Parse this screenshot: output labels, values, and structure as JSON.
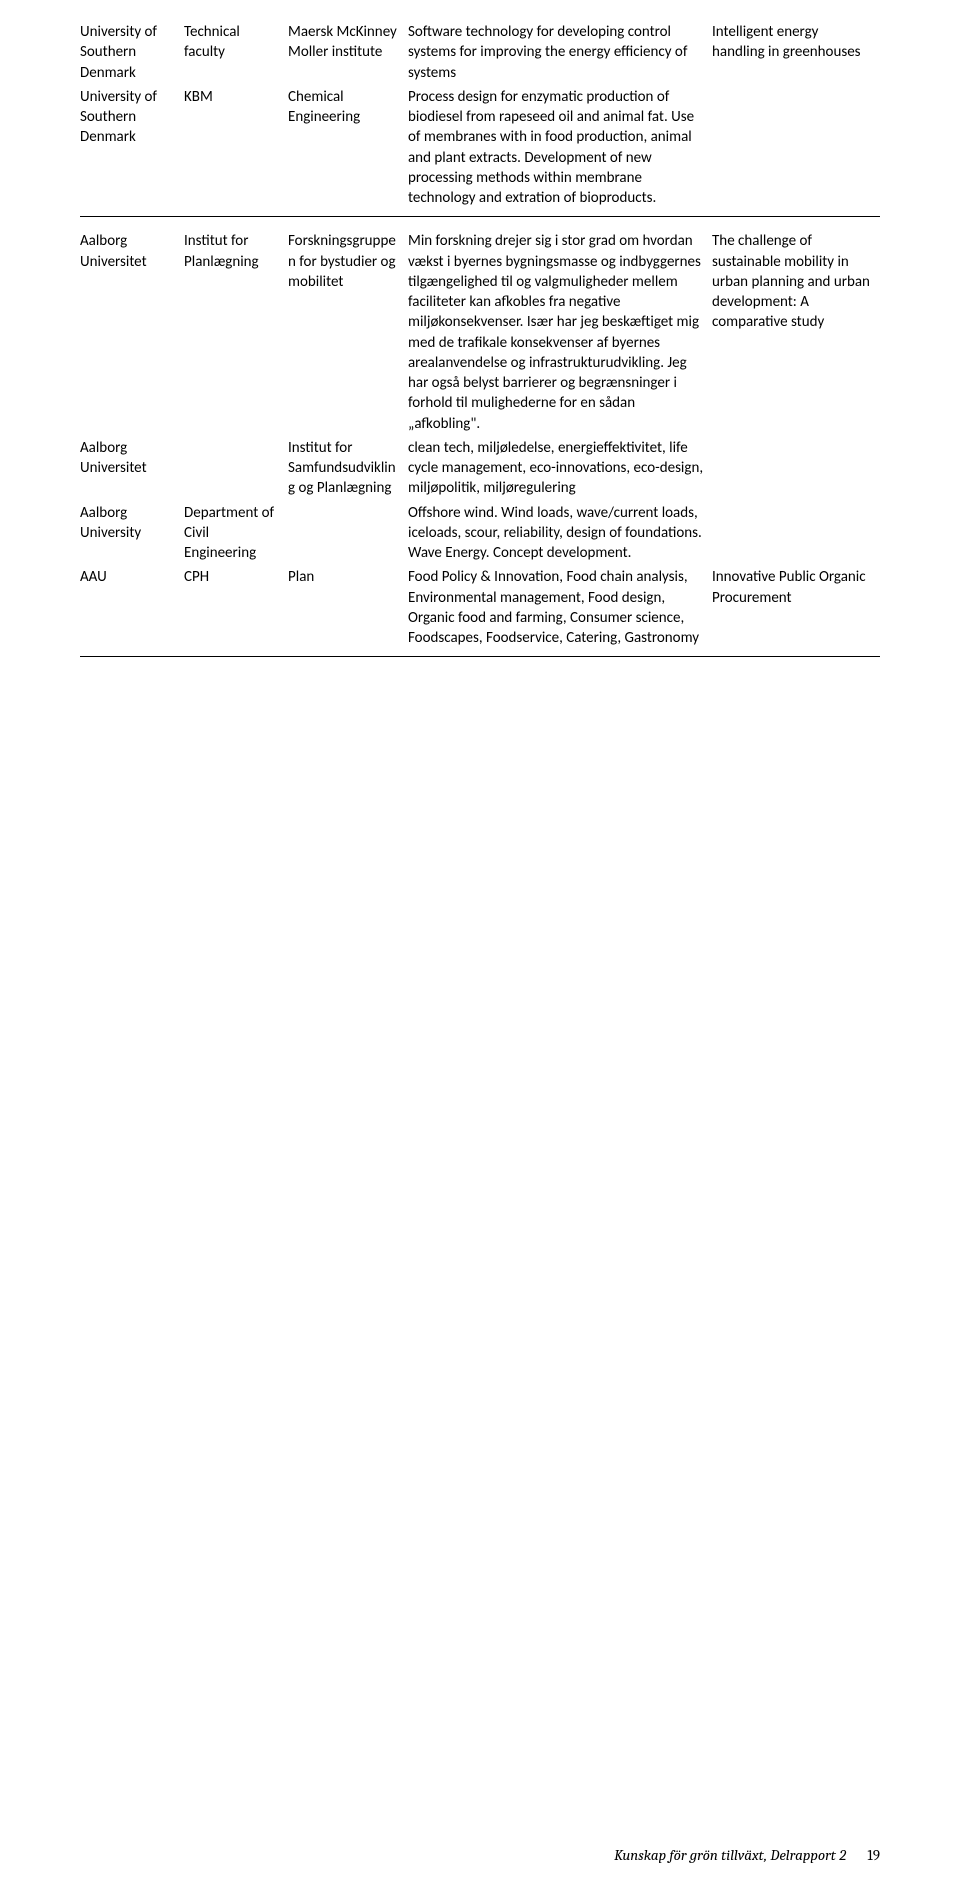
{
  "rows": [
    {
      "c1": "University of Southern Denmark",
      "c2": "Technical faculty",
      "c3": "Maersk McKinney Moller institute",
      "c4": "Software technology for developing control systems for improving the energy efficiency of systems",
      "c5": "Intelligent energy handling in greenhouses"
    },
    {
      "c1": "University of Southern Denmark",
      "c2": "KBM",
      "c3": "Chemical Engineering",
      "c4": "Process design for enzymatic production of biodiesel from rapeseed oil and animal fat. Use of membranes with in food production, animal and plant extracts. Development of new processing methods within membrane technology and extration of bioproducts.",
      "c5": ""
    },
    {
      "c1": "Aalborg Universitet",
      "c2": "Institut for Planlægning",
      "c3": "Forskningsgruppen for bystudier og mobilitet",
      "c4": "Min forskning drejer sig i stor grad om hvordan vækst i byernes bygningsmasse og indbyggernes tilgængelighed til og valgmuligheder mellem faciliteter kan afkobles fra negative miljøkonsekvenser. Især har jeg beskæftiget mig med de trafikale konsekvenser af byernes arealanvendelse og infrastrukturudvikling. Jeg har også belyst barrierer og begrænsninger i forhold til mulighederne for en sådan „afkobling\".",
      "c5": "The challenge of sustainable mobility in urban planning and urban development: A comparative study"
    },
    {
      "c1": "Aalborg Universitet",
      "c2": "",
      "c3": "Institut for Samfundsudvikling og Planlægning",
      "c4": "clean tech, miljøledelse, energieffektivitet, life cycle management, eco-innovations, eco-design, miljøpolitik, miljøregulering",
      "c5": ""
    },
    {
      "c1": "Aalborg University",
      "c2": "Department of Civil Engineering",
      "c3": "",
      "c4": "Offshore wind. Wind loads, wave/current loads, iceloads, scour, reliability, design of foundations. Wave Energy. Concept development.",
      "c5": ""
    },
    {
      "c1": "AAU",
      "c2": "CPH",
      "c3": "Plan",
      "c4": "Food Policy & Innovation, Food chain analysis, Environmental management, Food design, Organic food and farming, Consumer science, Foodscapes, Foodservice, Catering, Gastronomy",
      "c5": "Innovative Public Organic Procurement"
    }
  ],
  "footer": {
    "title": "Kunskap för grön tillväxt, Delrapport 2",
    "page": "19"
  }
}
